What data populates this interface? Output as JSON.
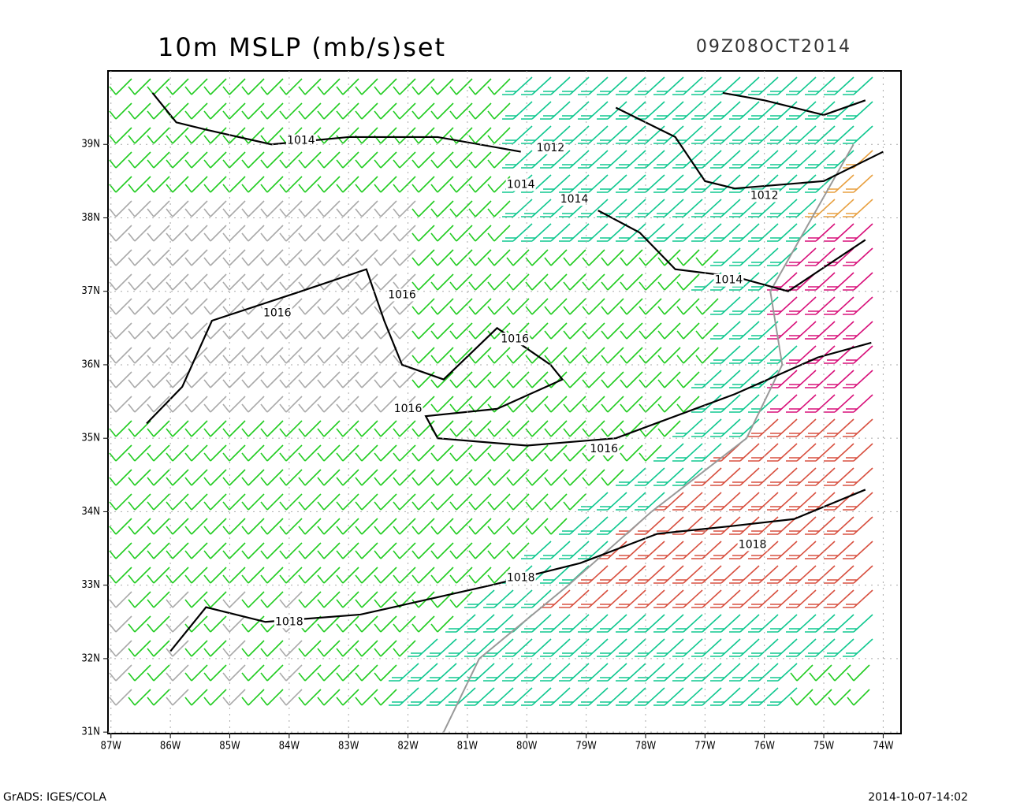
{
  "header": {
    "title": "10m MSLP (mb/s)set",
    "time": "09Z08OCT2014"
  },
  "map": {
    "xlim": [
      -87.05,
      -73.7
    ],
    "ylim": [
      30.98,
      40.0
    ],
    "xticks": [
      {
        "value": -87,
        "label": "87W"
      },
      {
        "value": -86,
        "label": "86W"
      },
      {
        "value": -85,
        "label": "85W"
      },
      {
        "value": -84,
        "label": "84W"
      },
      {
        "value": -83,
        "label": "83W"
      },
      {
        "value": -82,
        "label": "82W"
      },
      {
        "value": -81,
        "label": "81W"
      },
      {
        "value": -80,
        "label": "80W"
      },
      {
        "value": -79,
        "label": "79W"
      },
      {
        "value": -78,
        "label": "78W"
      },
      {
        "value": -77,
        "label": "77W"
      },
      {
        "value": -76,
        "label": "76W"
      },
      {
        "value": -75,
        "label": "75W"
      },
      {
        "value": -74,
        "label": "74W"
      }
    ],
    "yticks": [
      {
        "value": 31,
        "label": "31N"
      },
      {
        "value": 32,
        "label": "32N"
      },
      {
        "value": 33,
        "label": "33N"
      },
      {
        "value": 34,
        "label": "34N"
      },
      {
        "value": 35,
        "label": "35N"
      },
      {
        "value": 36,
        "label": "36N"
      },
      {
        "value": 37,
        "label": "37N"
      },
      {
        "value": 38,
        "label": "38N"
      },
      {
        "value": 39,
        "label": "39N"
      }
    ],
    "contour_labels": [
      1014,
      1012,
      1014,
      1014,
      1012,
      1014,
      1016,
      1016,
      1016,
      1016,
      1016,
      1018,
      1018,
      1018
    ]
  },
  "footer": {
    "left": "GrADS: IGES/COLA",
    "right": "2014-10-07-14:02"
  }
}
